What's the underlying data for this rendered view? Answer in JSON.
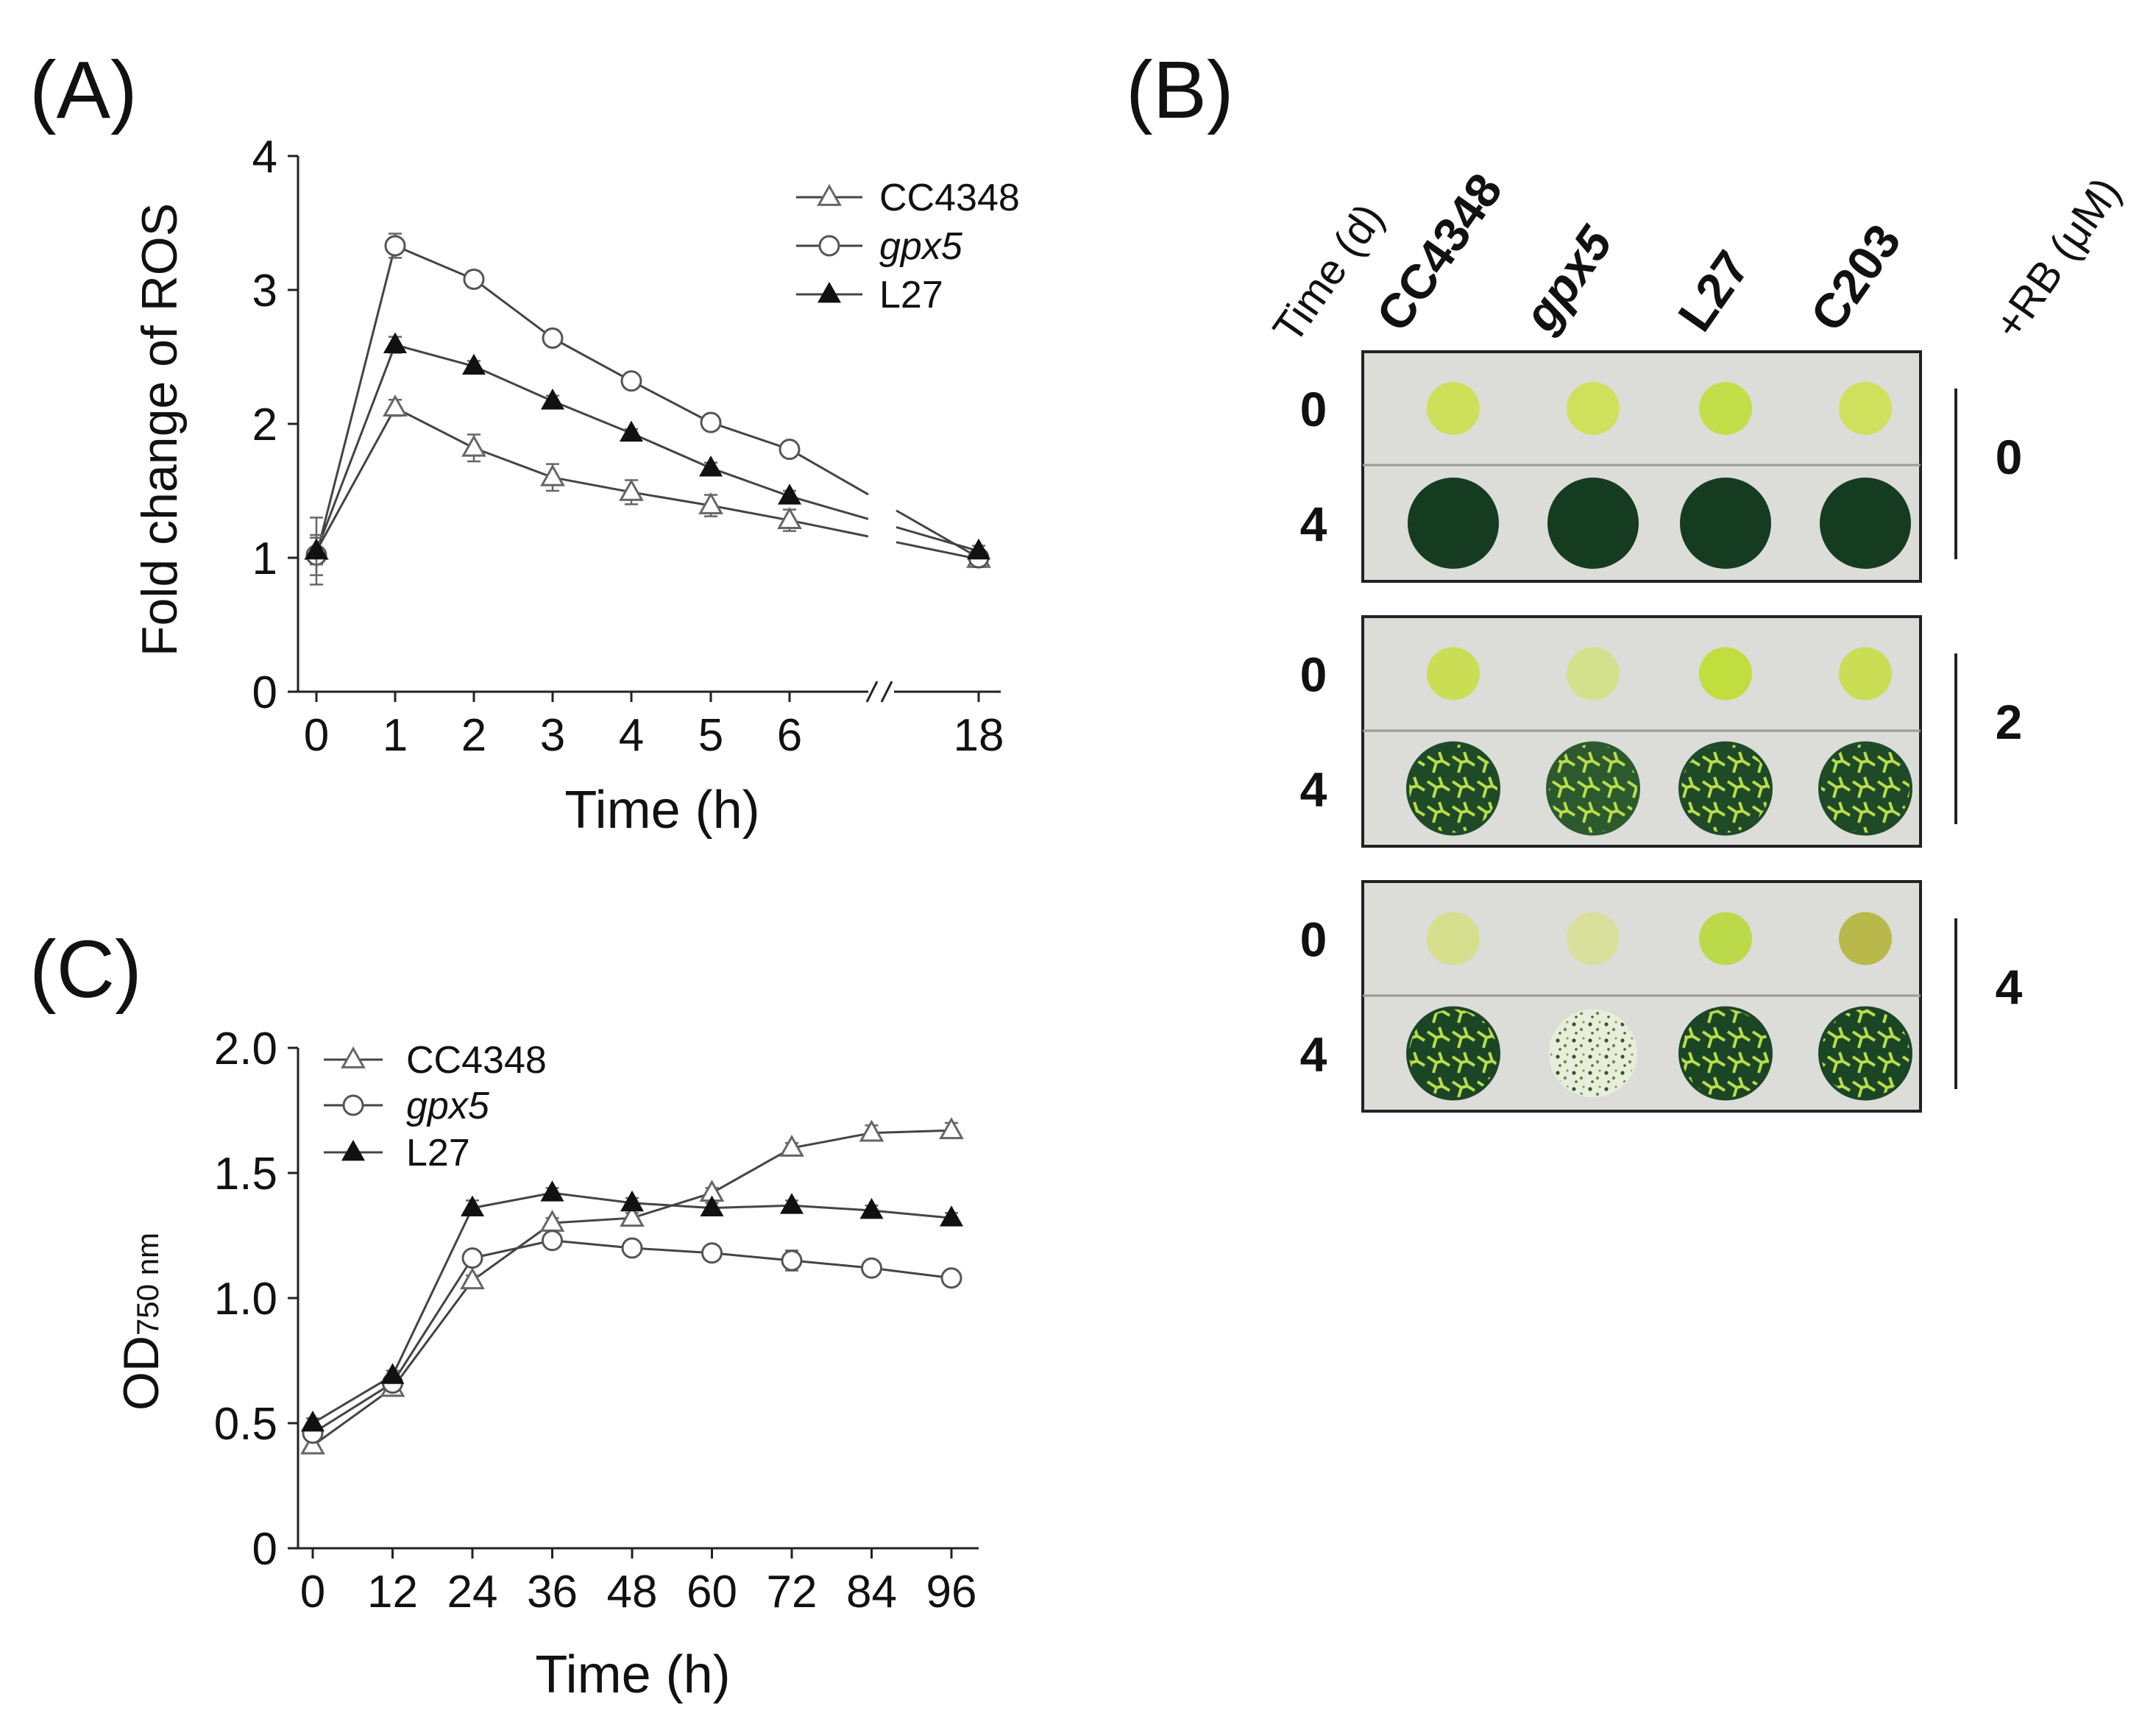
{
  "panel_labels": {
    "a": "(A)",
    "b": "(B)",
    "c": "(C)"
  },
  "chart_data": [
    {
      "id": "A",
      "type": "line",
      "ylabel": "Fold change of ROS",
      "xlabel": "Time (h)",
      "ylim": [
        0,
        4
      ],
      "yticks": [
        0,
        1,
        2,
        3,
        4
      ],
      "x": [
        0,
        1,
        2,
        3,
        4,
        5,
        6,
        18
      ],
      "xtick_labels": [
        "0",
        "1",
        "2",
        "3",
        "4",
        "5",
        "6",
        "18"
      ],
      "axis_break": "//",
      "series": [
        {
          "name": "CC4348",
          "marker": "open-triangle",
          "values": [
            1.05,
            2.12,
            1.82,
            1.6,
            1.49,
            1.39,
            1.28,
            0.99
          ],
          "errors": [
            0.25,
            0.06,
            0.1,
            0.1,
            0.09,
            0.08,
            0.08,
            0.06
          ]
        },
        {
          "name": "gpx5",
          "italic": true,
          "marker": "open-circle",
          "values": [
            1.02,
            3.33,
            3.08,
            2.64,
            2.32,
            2.01,
            1.81,
            1.0
          ],
          "errors": [
            0.15,
            0.09,
            0.06,
            0.03,
            0.03,
            0.03,
            0.03,
            0.04
          ]
        },
        {
          "name": "L27",
          "marker": "filled-triangle",
          "values": [
            1.05,
            2.59,
            2.43,
            2.17,
            1.93,
            1.67,
            1.46,
            1.05
          ],
          "errors": [
            0.1,
            0.06,
            0.04,
            0.04,
            0.03,
            0.04,
            0.04,
            0.04
          ]
        }
      ]
    },
    {
      "id": "C",
      "type": "line",
      "ylabel": "OD",
      "ylabel_sub": "750 nm",
      "xlabel": "Time (h)",
      "ylim": [
        0,
        2.0
      ],
      "yticks": [
        "0",
        "0.5",
        "1.0",
        "1.5",
        "2.0"
      ],
      "x": [
        0,
        12,
        24,
        36,
        48,
        60,
        72,
        84,
        96
      ],
      "series": [
        {
          "name": "CC4348",
          "marker": "open-triangle",
          "values": [
            0.41,
            0.64,
            1.07,
            1.3,
            1.32,
            1.42,
            1.6,
            1.66,
            1.67
          ],
          "errors": [
            0.02,
            0.02,
            0.02,
            0.02,
            0.02,
            0.02,
            0.02,
            0.03,
            0.03
          ]
        },
        {
          "name": "gpx5",
          "italic": true,
          "marker": "open-circle",
          "values": [
            0.46,
            0.66,
            1.16,
            1.23,
            1.2,
            1.18,
            1.15,
            1.12,
            1.08
          ],
          "errors": [
            0.02,
            0.02,
            0.02,
            0.02,
            0.02,
            0.02,
            0.04,
            0.03,
            0.03
          ]
        },
        {
          "name": "L27",
          "marker": "filled-triangle",
          "values": [
            0.5,
            0.69,
            1.36,
            1.42,
            1.38,
            1.36,
            1.37,
            1.35,
            1.32
          ],
          "errors": [
            0.02,
            0.02,
            0.03,
            0.02,
            0.02,
            0.02,
            0.02,
            0.02,
            0.02
          ]
        }
      ]
    }
  ],
  "spot_assay": {
    "time_header": "Time (d)",
    "strains": [
      {
        "label": "CC4348",
        "italic": false
      },
      {
        "label": "gpx5",
        "italic": true
      },
      {
        "label": "L27",
        "italic": false
      },
      {
        "label": "C203",
        "italic": false
      }
    ],
    "rb_header": "+RB (μM)",
    "blocks": [
      {
        "rb": "0",
        "time_labels": [
          "0",
          "4"
        ],
        "day0_colors": [
          "#cde05a",
          "#cfe15c",
          "#c4de4a",
          "#cfe15c"
        ],
        "day4_colors": [
          "#153c20",
          "#153c20",
          "#153c20",
          "#153c20"
        ],
        "day4_growth": [
          "solid",
          "solid",
          "solid",
          "solid"
        ]
      },
      {
        "rb": "2",
        "time_labels": [
          "0",
          "4"
        ],
        "day0_colors": [
          "#c9de55",
          "#d3e18c",
          "#c2dd3e",
          "#c9de55"
        ],
        "day4_colors": [
          "#1e4a28",
          "#2c5a2e",
          "#1e4a28",
          "#1e4a28"
        ],
        "day4_growth": [
          "cracked",
          "cracked",
          "cracked",
          "cracked"
        ]
      },
      {
        "rb": "4",
        "time_labels": [
          "0",
          "4"
        ],
        "day0_colors": [
          "#d5df8e",
          "#d8e09c",
          "#bcd94a",
          "#b9b84a"
        ],
        "day4_colors": [
          "#1b4626",
          "#b8c996",
          "#1b4626",
          "#1b4626"
        ],
        "day4_growth": [
          "cracked",
          "sparse",
          "cracked",
          "cracked"
        ]
      }
    ]
  }
}
